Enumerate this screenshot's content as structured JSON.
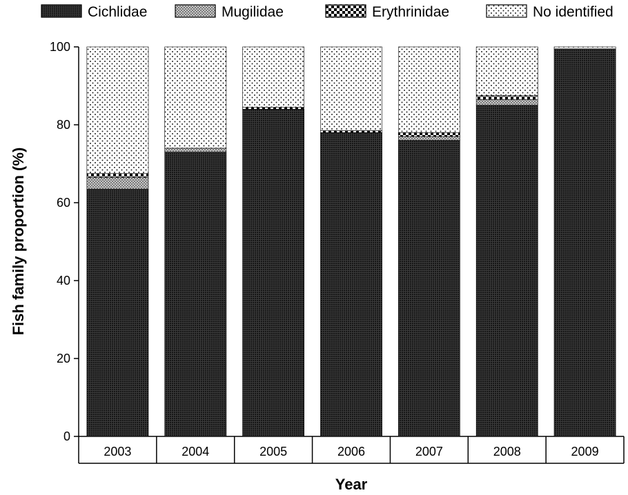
{
  "chart_data": {
    "type": "bar",
    "stacked": true,
    "title": "",
    "xlabel": "Year",
    "ylabel": "Fish family proportion (%)",
    "ylim": [
      0,
      100
    ],
    "yticks": [
      0,
      20,
      40,
      60,
      80,
      100
    ],
    "grid": false,
    "legend_position": "top",
    "categories": [
      "2003",
      "2004",
      "2005",
      "2006",
      "2007",
      "2008",
      "2009"
    ],
    "series": [
      {
        "name": "Cichlidae",
        "pattern": "fine-grid-dark",
        "values": [
          63.5,
          73,
          84,
          78,
          76,
          85,
          99.5
        ]
      },
      {
        "name": "Mugilidae",
        "pattern": "crosshatch-gray",
        "values": [
          3,
          1,
          0,
          0,
          1,
          1.5,
          0
        ]
      },
      {
        "name": "Erythrinidae",
        "pattern": "checkerboard",
        "values": [
          1,
          0,
          0.5,
          0.5,
          1,
          1,
          0
        ]
      },
      {
        "name": "No identified",
        "pattern": "dots",
        "values": [
          32.5,
          26,
          15.5,
          21.5,
          22,
          12.5,
          0.5
        ]
      }
    ]
  }
}
